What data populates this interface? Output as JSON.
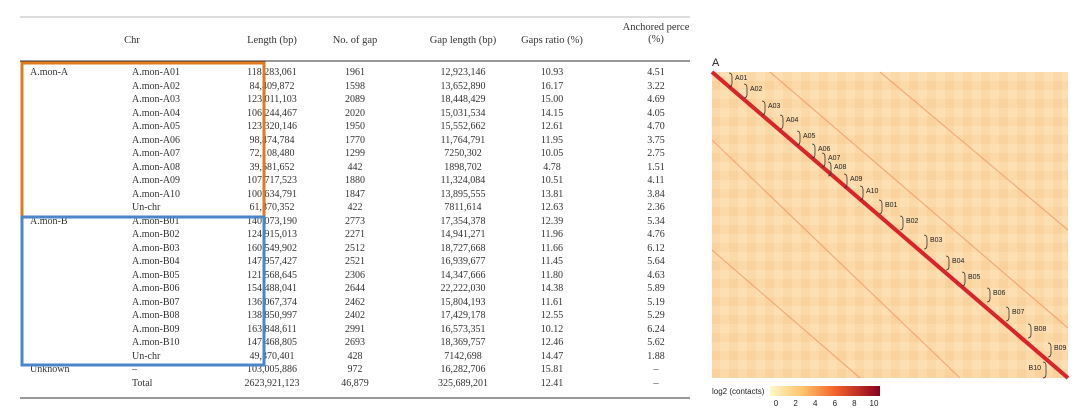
{
  "table": {
    "header": [
      null,
      "Chr",
      "Length (bp)",
      "No. of gap",
      "Gap length (bp)",
      "Gaps ratio (%)",
      "Anchored perce (%)"
    ],
    "rows": [
      [
        "A.mon-A",
        "A.mon-A01",
        "118,283,061",
        "1961",
        "12,923,146",
        "10.93",
        "4.51"
      ],
      [
        null,
        "A.mon-A02",
        "84,409,872",
        "1598",
        "13,652,890",
        "16.17",
        "3.22"
      ],
      [
        null,
        "A.mon-A03",
        "123,011,103",
        "2089",
        "18,448,429",
        "15.00",
        "4.69"
      ],
      [
        null,
        "A.mon-A04",
        "106,244,467",
        "2020",
        "15,031,534",
        "14.15",
        "4.05"
      ],
      [
        null,
        "A.mon-A05",
        "123,320,146",
        "1950",
        "15,552,662",
        "12.61",
        "4.70"
      ],
      [
        null,
        "A.mon-A06",
        "98,474,784",
        "1770",
        "11,764,791",
        "11.95",
        "3.75"
      ],
      [
        null,
        "A.mon-A07",
        "72,108,480",
        "1299",
        "7250,302",
        "10.05",
        "2.75"
      ],
      [
        null,
        "A.mon-A08",
        "39,681,652",
        "442",
        "1898,702",
        "4.78",
        "1.51"
      ],
      [
        null,
        "A.mon-A09",
        "107,717,523",
        "1880",
        "11,324,084",
        "10.51",
        "4.11"
      ],
      [
        null,
        "A.mon-A10",
        "100,634,791",
        "1847",
        "13,895,555",
        "13.81",
        "3.84"
      ],
      [
        null,
        "Un-chr",
        "61,870,352",
        "422",
        "7811,614",
        "12.63",
        "2.36"
      ],
      [
        "A.mon-B",
        "A.mon-B01",
        "140,073,190",
        "2773",
        "17,354,378",
        "12.39",
        "5.34"
      ],
      [
        null,
        "A.mon-B02",
        "124,915,013",
        "2271",
        "14,941,271",
        "11.96",
        "4.76"
      ],
      [
        null,
        "A.mon-B03",
        "160,549,902",
        "2512",
        "18,727,668",
        "11.66",
        "6.12"
      ],
      [
        null,
        "A.mon-B04",
        "147,957,427",
        "2521",
        "16,939,677",
        "11.45",
        "5.64"
      ],
      [
        null,
        "A.mon-B05",
        "121,568,645",
        "2306",
        "14,347,666",
        "11.80",
        "4.63"
      ],
      [
        null,
        "A.mon-B06",
        "154,488,041",
        "2644",
        "22,222,030",
        "14.38",
        "5.89"
      ],
      [
        null,
        "A.mon-B07",
        "136,067,374",
        "2462",
        "15,804,193",
        "11.61",
        "5.19"
      ],
      [
        null,
        "A.mon-B08",
        "138,850,997",
        "2402",
        "17,429,178",
        "12.55",
        "5.29"
      ],
      [
        null,
        "A.mon-B09",
        "163,848,611",
        "2991",
        "16,573,351",
        "10.12",
        "6.24"
      ],
      [
        null,
        "A.mon-B10",
        "147,468,805",
        "2693",
        "18,369,757",
        "12.46",
        "5.62"
      ],
      [
        null,
        "Un-chr",
        "49,370,401",
        "428",
        "7142,698",
        "14.47",
        "1.88"
      ],
      [
        "Unknown",
        "–",
        "103,005,886",
        "972",
        "16,282,706",
        "15.81",
        "–"
      ],
      [
        null,
        "Total",
        "2623,921,123",
        "46,879",
        "325,689,201",
        "12.41",
        "–"
      ]
    ]
  },
  "heatmap": {
    "panel": "A",
    "labels": [
      "A01",
      "A02",
      "A03",
      "A04",
      "A05",
      "A06",
      "A07",
      "A08",
      "A09",
      "A10",
      "B01",
      "B02",
      "B03",
      "B04",
      "B05",
      "B06",
      "B07",
      "B08",
      "B09",
      "B10"
    ],
    "colorbar_title": "log2 (contacts)",
    "colorbar_ticks": [
      "0",
      "2",
      "4",
      "6",
      "8",
      "10"
    ]
  }
}
